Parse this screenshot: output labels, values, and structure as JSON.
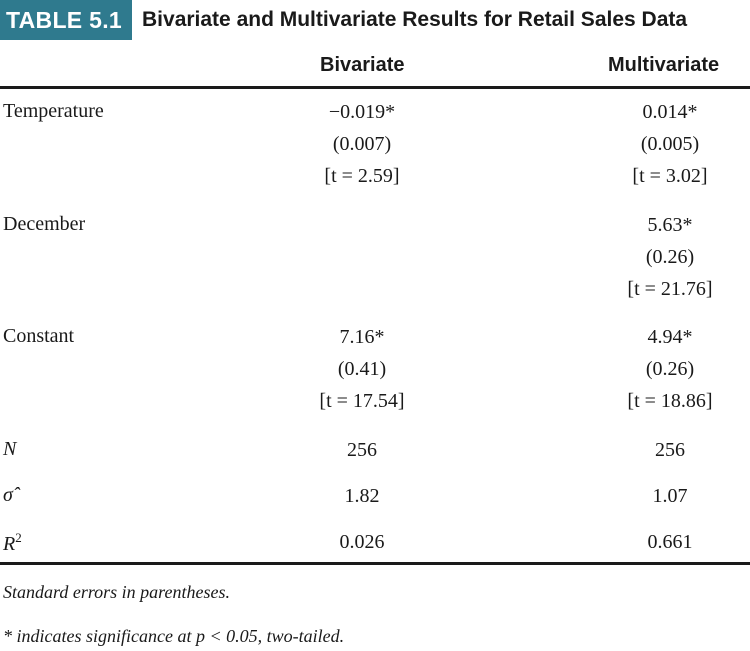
{
  "header": {
    "badge": "TABLE 5.1",
    "title": "Bivariate and Multivariate Results for Retail Sales Data"
  },
  "columns": {
    "bivariate": "Bivariate",
    "multivariate": "Multivariate"
  },
  "rows": {
    "temperature": {
      "label": "Temperature",
      "bivariate": {
        "coef": "−0.019*",
        "se": "(0.007)",
        "t": "[t = 2.59]"
      },
      "multivariate": {
        "coef": "0.014*",
        "se": "(0.005)",
        "t": "[t = 3.02]"
      }
    },
    "december": {
      "label": "December",
      "multivariate": {
        "coef": "5.63*",
        "se": "(0.26)",
        "t": "[t = 21.76]"
      }
    },
    "constant": {
      "label": "Constant",
      "bivariate": {
        "coef": "7.16*",
        "se": "(0.41)",
        "t": "[t = 17.54]"
      },
      "multivariate": {
        "coef": "4.94*",
        "se": "(0.26)",
        "t": "[t = 18.86]"
      }
    },
    "n": {
      "label": "N",
      "bivariate": "256",
      "multivariate": "256"
    },
    "sigma": {
      "label": "σ̂",
      "bivariate": "1.82",
      "multivariate": "1.07"
    },
    "r2": {
      "label": "R",
      "label_sup": "2",
      "bivariate": "0.026",
      "multivariate": "0.661"
    }
  },
  "notes": {
    "standard_errors": "Standard errors in parentheses.",
    "significance": "* indicates significance at p < 0.05, two-tailed."
  },
  "colors": {
    "badge_background": "#2f7a8e",
    "badge_text": "#ffffff"
  }
}
